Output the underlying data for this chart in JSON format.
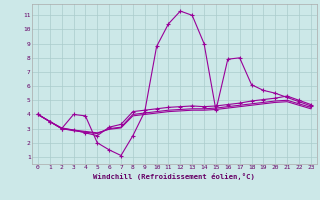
{
  "background_color": "#cce8e8",
  "grid_color": "#aacccc",
  "line_color": "#990099",
  "x_ticks": [
    0,
    1,
    2,
    3,
    4,
    5,
    6,
    7,
    8,
    9,
    10,
    11,
    12,
    13,
    14,
    15,
    16,
    17,
    18,
    19,
    20,
    21,
    22,
    23
  ],
  "y_ticks": [
    1,
    2,
    3,
    4,
    5,
    6,
    7,
    8,
    9,
    10,
    11
  ],
  "xlabel": "Windchill (Refroidissement éolien,°C)",
  "ylim": [
    0.5,
    11.8
  ],
  "xlim": [
    -0.5,
    23.5
  ],
  "curve1_x": [
    0,
    1,
    2,
    3,
    4,
    5,
    6,
    7,
    8,
    9,
    10,
    11,
    12,
    13,
    14,
    15,
    16,
    17,
    18,
    19,
    20,
    21,
    22,
    23
  ],
  "curve1_y": [
    4.0,
    3.5,
    3.0,
    4.0,
    3.9,
    2.0,
    1.5,
    1.1,
    2.5,
    4.2,
    8.8,
    10.4,
    11.3,
    11.0,
    9.0,
    4.3,
    7.9,
    8.0,
    6.1,
    5.7,
    5.5,
    5.2,
    4.9,
    4.6
  ],
  "curve2_x": [
    0,
    1,
    2,
    3,
    4,
    5,
    6,
    7,
    8,
    9,
    10,
    11,
    12,
    13,
    14,
    15,
    16,
    17,
    18,
    19,
    20,
    21,
    22,
    23
  ],
  "curve2_y": [
    4.0,
    3.5,
    3.0,
    2.9,
    2.7,
    2.5,
    3.1,
    3.3,
    4.2,
    4.3,
    4.4,
    4.5,
    4.55,
    4.6,
    4.55,
    4.6,
    4.7,
    4.8,
    4.95,
    5.05,
    5.15,
    5.3,
    5.0,
    4.7
  ],
  "curve3_x": [
    0,
    1,
    2,
    3,
    4,
    5,
    6,
    7,
    8,
    9,
    10,
    11,
    12,
    13,
    14,
    15,
    16,
    17,
    18,
    19,
    20,
    21,
    22,
    23
  ],
  "curve3_y": [
    4.0,
    3.5,
    3.0,
    2.85,
    2.75,
    2.65,
    3.0,
    3.1,
    4.0,
    4.1,
    4.2,
    4.3,
    4.35,
    4.4,
    4.4,
    4.45,
    4.55,
    4.65,
    4.75,
    4.85,
    4.95,
    5.0,
    4.75,
    4.5
  ],
  "curve4_x": [
    0,
    1,
    2,
    3,
    4,
    5,
    6,
    7,
    8,
    9,
    10,
    11,
    12,
    13,
    14,
    15,
    16,
    17,
    18,
    19,
    20,
    21,
    22,
    23
  ],
  "curve4_y": [
    4.0,
    3.5,
    3.05,
    2.9,
    2.8,
    2.7,
    2.95,
    3.05,
    3.9,
    4.0,
    4.1,
    4.2,
    4.25,
    4.3,
    4.3,
    4.35,
    4.45,
    4.55,
    4.65,
    4.75,
    4.85,
    4.9,
    4.65,
    4.4
  ]
}
